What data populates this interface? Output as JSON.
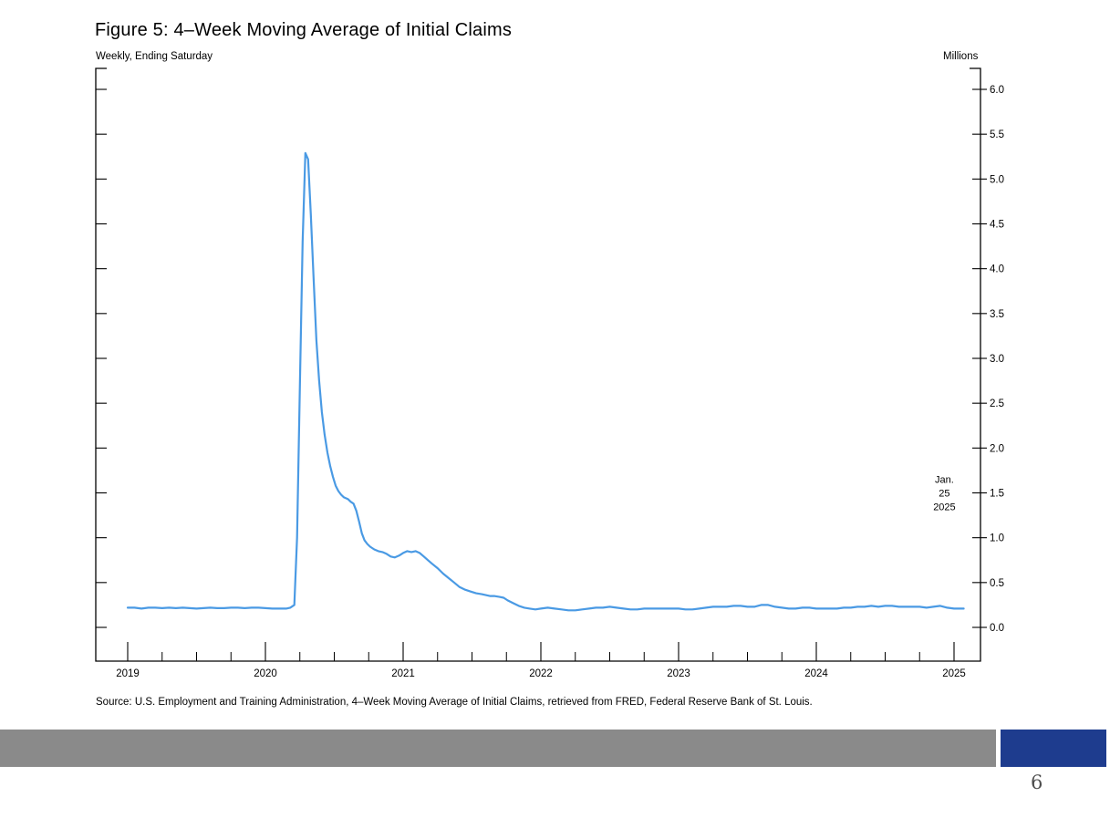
{
  "slide": {
    "title": "Figure 5: 4–Week Moving Average of Initial Claims",
    "left_axis_caption": "Weekly, Ending Saturday",
    "right_axis_caption": "Millions",
    "source": "Source: U.S. Employment and Training Administration, 4–Week Moving Average of Initial Claims, retrieved from FRED, Federal Reserve Bank of St. Louis.",
    "page_number": "6",
    "footer_gray_color": "#8a8a8a",
    "footer_blue_color": "#1e3c8e"
  },
  "chart_data": {
    "type": "line",
    "title": "Figure 5: 4–Week Moving Average of Initial Claims",
    "frequency_label": "Weekly, Ending Saturday",
    "unit_label": "Millions",
    "grid": false,
    "legend": "none",
    "xlim": [
      2018.77,
      2025.19
    ],
    "ylim": [
      0.0,
      6.0
    ],
    "x_major_ticks": [
      2019,
      2020,
      2021,
      2022,
      2023,
      2024,
      2025
    ],
    "x_tick_labels": [
      "2019",
      "2020",
      "2021",
      "2022",
      "2023",
      "2024",
      "2025"
    ],
    "x_minor_step": 0.25,
    "y_ticks": [
      0.0,
      0.5,
      1.0,
      1.5,
      2.0,
      2.5,
      3.0,
      3.5,
      4.0,
      4.5,
      5.0,
      5.5,
      6.0
    ],
    "y_tick_labels": [
      "0.0",
      "0.5",
      "1.0",
      "1.5",
      "2.0",
      "2.5",
      "3.0",
      "3.5",
      "4.0",
      "4.5",
      "5.0",
      "5.5",
      "6.0"
    ],
    "annotation": {
      "lines": [
        "Jan.",
        "25",
        "2025"
      ],
      "x": 2024.93,
      "y_value": 1.5
    },
    "series": [
      {
        "name": "4-Week Moving Average of Initial Claims",
        "color": "#4A9AE4",
        "points": [
          [
            2019.0,
            0.22
          ],
          [
            2019.05,
            0.22
          ],
          [
            2019.1,
            0.21
          ],
          [
            2019.15,
            0.22
          ],
          [
            2019.2,
            0.22
          ],
          [
            2019.25,
            0.215
          ],
          [
            2019.3,
            0.22
          ],
          [
            2019.35,
            0.215
          ],
          [
            2019.4,
            0.22
          ],
          [
            2019.45,
            0.215
          ],
          [
            2019.5,
            0.21
          ],
          [
            2019.55,
            0.215
          ],
          [
            2019.6,
            0.22
          ],
          [
            2019.65,
            0.215
          ],
          [
            2019.7,
            0.215
          ],
          [
            2019.75,
            0.22
          ],
          [
            2019.8,
            0.22
          ],
          [
            2019.85,
            0.215
          ],
          [
            2019.9,
            0.22
          ],
          [
            2019.95,
            0.22
          ],
          [
            2020.0,
            0.215
          ],
          [
            2020.05,
            0.21
          ],
          [
            2020.1,
            0.21
          ],
          [
            2020.15,
            0.21
          ],
          [
            2020.18,
            0.22
          ],
          [
            2020.21,
            0.25
          ],
          [
            2020.23,
            1.0
          ],
          [
            2020.25,
            2.7
          ],
          [
            2020.27,
            4.3
          ],
          [
            2020.29,
            5.29
          ],
          [
            2020.31,
            5.22
          ],
          [
            2020.33,
            4.6
          ],
          [
            2020.35,
            3.9
          ],
          [
            2020.37,
            3.2
          ],
          [
            2020.39,
            2.75
          ],
          [
            2020.41,
            2.4
          ],
          [
            2020.43,
            2.15
          ],
          [
            2020.45,
            1.95
          ],
          [
            2020.47,
            1.8
          ],
          [
            2020.49,
            1.68
          ],
          [
            2020.51,
            1.58
          ],
          [
            2020.53,
            1.52
          ],
          [
            2020.55,
            1.48
          ],
          [
            2020.57,
            1.45
          ],
          [
            2020.6,
            1.43
          ],
          [
            2020.62,
            1.4
          ],
          [
            2020.64,
            1.38
          ],
          [
            2020.66,
            1.3
          ],
          [
            2020.68,
            1.18
          ],
          [
            2020.7,
            1.05
          ],
          [
            2020.72,
            0.97
          ],
          [
            2020.74,
            0.93
          ],
          [
            2020.76,
            0.9
          ],
          [
            2020.79,
            0.87
          ],
          [
            2020.82,
            0.85
          ],
          [
            2020.85,
            0.84
          ],
          [
            2020.88,
            0.82
          ],
          [
            2020.91,
            0.79
          ],
          [
            2020.94,
            0.78
          ],
          [
            2020.97,
            0.8
          ],
          [
            2021.0,
            0.83
          ],
          [
            2021.03,
            0.85
          ],
          [
            2021.06,
            0.84
          ],
          [
            2021.09,
            0.85
          ],
          [
            2021.12,
            0.83
          ],
          [
            2021.15,
            0.79
          ],
          [
            2021.18,
            0.75
          ],
          [
            2021.21,
            0.71
          ],
          [
            2021.25,
            0.66
          ],
          [
            2021.29,
            0.6
          ],
          [
            2021.33,
            0.55
          ],
          [
            2021.37,
            0.5
          ],
          [
            2021.41,
            0.45
          ],
          [
            2021.45,
            0.42
          ],
          [
            2021.49,
            0.4
          ],
          [
            2021.53,
            0.38
          ],
          [
            2021.57,
            0.37
          ],
          [
            2021.6,
            0.36
          ],
          [
            2021.63,
            0.35
          ],
          [
            2021.66,
            0.35
          ],
          [
            2021.7,
            0.34
          ],
          [
            2021.73,
            0.33
          ],
          [
            2021.76,
            0.3
          ],
          [
            2021.8,
            0.27
          ],
          [
            2021.84,
            0.24
          ],
          [
            2021.88,
            0.22
          ],
          [
            2021.92,
            0.21
          ],
          [
            2021.96,
            0.2
          ],
          [
            2022.0,
            0.21
          ],
          [
            2022.05,
            0.22
          ],
          [
            2022.1,
            0.21
          ],
          [
            2022.15,
            0.2
          ],
          [
            2022.2,
            0.19
          ],
          [
            2022.25,
            0.19
          ],
          [
            2022.3,
            0.2
          ],
          [
            2022.35,
            0.21
          ],
          [
            2022.4,
            0.22
          ],
          [
            2022.45,
            0.22
          ],
          [
            2022.5,
            0.23
          ],
          [
            2022.55,
            0.22
          ],
          [
            2022.6,
            0.21
          ],
          [
            2022.65,
            0.2
          ],
          [
            2022.7,
            0.2
          ],
          [
            2022.75,
            0.21
          ],
          [
            2022.8,
            0.21
          ],
          [
            2022.85,
            0.21
          ],
          [
            2022.9,
            0.21
          ],
          [
            2022.95,
            0.21
          ],
          [
            2023.0,
            0.21
          ],
          [
            2023.05,
            0.2
          ],
          [
            2023.1,
            0.2
          ],
          [
            2023.15,
            0.21
          ],
          [
            2023.2,
            0.22
          ],
          [
            2023.25,
            0.23
          ],
          [
            2023.3,
            0.23
          ],
          [
            2023.35,
            0.23
          ],
          [
            2023.4,
            0.24
          ],
          [
            2023.45,
            0.24
          ],
          [
            2023.5,
            0.23
          ],
          [
            2023.55,
            0.23
          ],
          [
            2023.6,
            0.25
          ],
          [
            2023.65,
            0.25
          ],
          [
            2023.7,
            0.23
          ],
          [
            2023.75,
            0.22
          ],
          [
            2023.8,
            0.21
          ],
          [
            2023.85,
            0.21
          ],
          [
            2023.9,
            0.22
          ],
          [
            2023.95,
            0.22
          ],
          [
            2024.0,
            0.21
          ],
          [
            2024.05,
            0.21
          ],
          [
            2024.1,
            0.21
          ],
          [
            2024.15,
            0.21
          ],
          [
            2024.2,
            0.22
          ],
          [
            2024.25,
            0.22
          ],
          [
            2024.3,
            0.23
          ],
          [
            2024.35,
            0.23
          ],
          [
            2024.4,
            0.24
          ],
          [
            2024.45,
            0.23
          ],
          [
            2024.5,
            0.24
          ],
          [
            2024.55,
            0.24
          ],
          [
            2024.6,
            0.23
          ],
          [
            2024.65,
            0.23
          ],
          [
            2024.7,
            0.23
          ],
          [
            2024.75,
            0.23
          ],
          [
            2024.8,
            0.22
          ],
          [
            2024.85,
            0.23
          ],
          [
            2024.9,
            0.24
          ],
          [
            2024.95,
            0.22
          ],
          [
            2025.0,
            0.21
          ],
          [
            2025.07,
            0.21
          ]
        ]
      }
    ]
  }
}
